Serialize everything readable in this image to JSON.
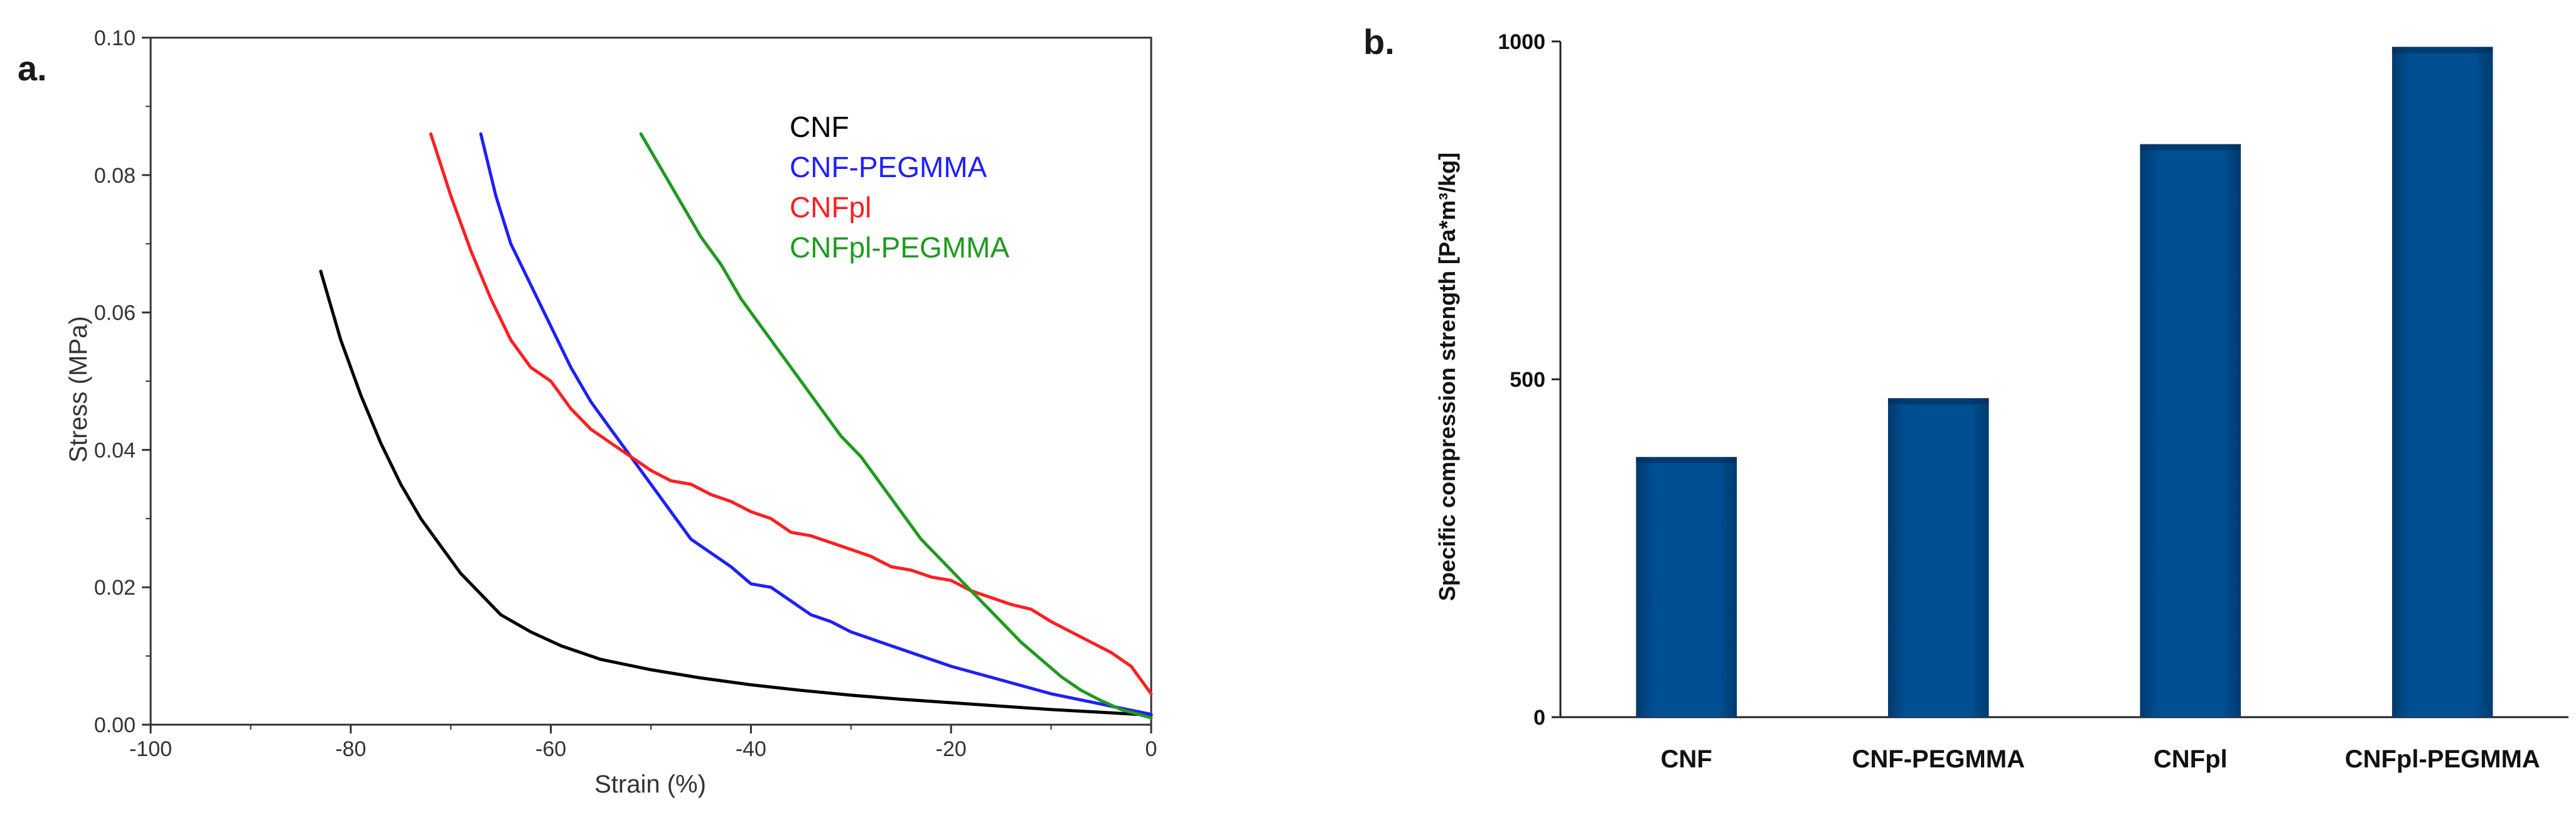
{
  "chart_data": [
    {
      "panel": "a.",
      "type": "line",
      "title": "",
      "xlabel": "Strain (%)",
      "ylabel": "Stress (MPa)",
      "xlim": [
        -100,
        0
      ],
      "ylim": [
        0,
        0.1
      ],
      "xticks": [
        -100,
        -80,
        -60,
        -40,
        -20,
        0
      ],
      "yticks": [
        0,
        0.02,
        0.04,
        0.06,
        0.08,
        0.1
      ],
      "xtick_labels": [
        "-100",
        "-80",
        "-60",
        "-40",
        "-20",
        "0"
      ],
      "ytick_labels": [
        "0.00",
        "0.02",
        "0.04",
        "0.06",
        "0.08",
        "0.10"
      ],
      "legend_position": "top-right",
      "grid": false,
      "series": [
        {
          "name": "CNF",
          "color": "#000000",
          "x": [
            -83,
            -81,
            -79,
            -77,
            -75,
            -73,
            -71,
            -69,
            -67,
            -65,
            -62,
            -59,
            -55,
            -50,
            -45,
            -40,
            -35,
            -30,
            -25,
            -20,
            -15,
            -10,
            -5,
            0
          ],
          "y": [
            0.066,
            0.056,
            0.048,
            0.041,
            0.035,
            0.03,
            0.026,
            0.022,
            0.019,
            0.016,
            0.0135,
            0.0115,
            0.0095,
            0.008,
            0.0068,
            0.0058,
            0.005,
            0.0043,
            0.0037,
            0.0032,
            0.0027,
            0.0022,
            0.0018,
            0.0014
          ]
        },
        {
          "name": "CNF-PEGMMA",
          "color": "#1f1fff",
          "x": [
            -67,
            -65.5,
            -64,
            -62,
            -60,
            -58,
            -56,
            -54,
            -52,
            -50,
            -48,
            -46,
            -44,
            -42,
            -40,
            -38,
            -36,
            -34,
            -32,
            -30,
            -25,
            -20,
            -15,
            -10,
            -5,
            0
          ],
          "y": [
            0.086,
            0.077,
            0.07,
            0.064,
            0.058,
            0.052,
            0.047,
            0.043,
            0.039,
            0.035,
            0.031,
            0.027,
            0.025,
            0.023,
            0.0205,
            0.02,
            0.018,
            0.016,
            0.015,
            0.0135,
            0.011,
            0.0085,
            0.0065,
            0.0045,
            0.003,
            0.0015
          ]
        },
        {
          "name": "CNFpl",
          "color": "#ff1f1f",
          "x": [
            -72,
            -70,
            -68,
            -66,
            -64,
            -62,
            -60,
            -58,
            -56,
            -54,
            -52,
            -50,
            -48,
            -46,
            -44,
            -42,
            -40,
            -38,
            -36,
            -34,
            -32,
            -30,
            -28,
            -26,
            -24,
            -22,
            -20,
            -18,
            -16,
            -14,
            -12,
            -10,
            -8,
            -6,
            -4,
            -2,
            0
          ],
          "y": [
            0.086,
            0.077,
            0.069,
            0.062,
            0.056,
            0.052,
            0.05,
            0.046,
            0.043,
            0.041,
            0.039,
            0.037,
            0.0355,
            0.035,
            0.0335,
            0.0325,
            0.031,
            0.03,
            0.028,
            0.0275,
            0.0265,
            0.0255,
            0.0245,
            0.023,
            0.0225,
            0.0215,
            0.021,
            0.0195,
            0.0185,
            0.0175,
            0.0168,
            0.015,
            0.0135,
            0.012,
            0.0105,
            0.0085,
            0.0045
          ]
        },
        {
          "name": "CNFpl-PEGMMA",
          "color": "#1f9a1f",
          "x": [
            -51,
            -49,
            -47,
            -45,
            -43,
            -41,
            -39,
            -37,
            -35,
            -33,
            -31,
            -29,
            -27,
            -25,
            -23,
            -21,
            -19,
            -17,
            -15,
            -13,
            -11,
            -9,
            -7,
            -5,
            -3,
            -1,
            0
          ],
          "y": [
            0.086,
            0.081,
            0.076,
            0.071,
            0.067,
            0.062,
            0.058,
            0.054,
            0.05,
            0.046,
            0.042,
            0.039,
            0.035,
            0.031,
            0.027,
            0.024,
            0.021,
            0.018,
            0.015,
            0.012,
            0.0095,
            0.007,
            0.005,
            0.0035,
            0.0022,
            0.0014,
            0.001
          ]
        }
      ]
    },
    {
      "panel": "b.",
      "type": "bar",
      "title": "",
      "xlabel": "",
      "ylabel": "Specific compression strength [Pa*m³/kg]",
      "ylim": [
        0,
        1000
      ],
      "yticks": [
        0,
        500,
        1000
      ],
      "ytick_labels": [
        "0",
        "500",
        "1000"
      ],
      "categories": [
        "CNF",
        "CNF-PEGMMA",
        "CNFpl",
        "CNFpl-PEGMMA"
      ],
      "values": [
        385,
        472,
        848,
        992
      ],
      "bar_color": "#004f93",
      "grid": false
    }
  ]
}
